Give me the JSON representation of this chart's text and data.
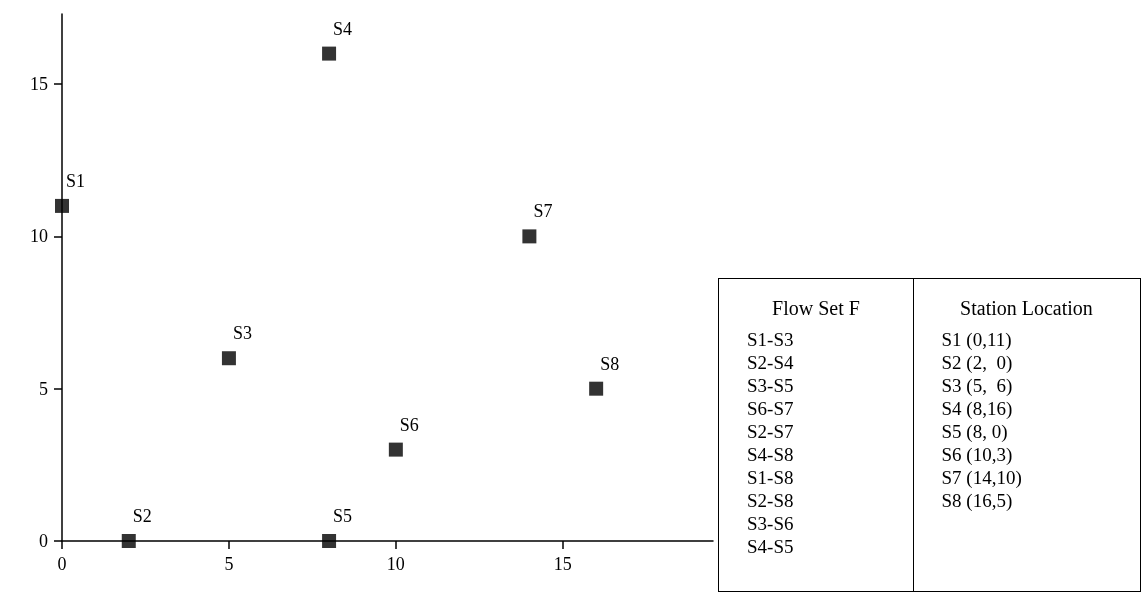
{
  "chart_data": [
    {
      "type": "scatter",
      "x": [
        0,
        2,
        5,
        8,
        8,
        10,
        14,
        16
      ],
      "values": [
        11,
        0,
        6,
        16,
        0,
        3,
        10,
        5
      ],
      "color": "#000000",
      "marker": "square",
      "xlim": [
        0,
        19.5
      ],
      "ylim": [
        0,
        17.3
      ],
      "xticks": [
        0,
        5,
        10,
        15
      ],
      "yticks": [
        0,
        5,
        10,
        15
      ],
      "grid": false,
      "annotations": [
        {
          "text": "S1",
          "x": 0,
          "y": 11
        },
        {
          "text": "S2",
          "x": 2,
          "y": 0
        },
        {
          "text": "S3",
          "x": 5,
          "y": 6
        },
        {
          "text": "S4",
          "x": 8,
          "y": 16
        },
        {
          "text": "S5",
          "x": 8,
          "y": 0
        },
        {
          "text": "S6",
          "x": 10,
          "y": 3
        },
        {
          "text": "S7",
          "x": 14,
          "y": 10
        },
        {
          "text": "S8",
          "x": 16,
          "y": 5
        }
      ]
    },
    {
      "type": "other",
      "title": "Flow Set F",
      "annotations": [
        "S1-S3",
        "S2-S4",
        "S3-S5",
        "S6-S7",
        "S2-S7",
        "S4-S8",
        "S1-S8",
        "S2-S8",
        "S3-S6",
        "S4-S5"
      ]
    },
    {
      "type": "other",
      "title": "Station Location",
      "annotations": [
        "S1 (0,11)",
        "S2 (2,  0)",
        "S3 (5,  6)",
        "S4 (8,16)",
        "S5 (8, 0)",
        "S6 (10,3)",
        "S7 (14,10)",
        "S8 (16,5)"
      ]
    }
  ]
}
